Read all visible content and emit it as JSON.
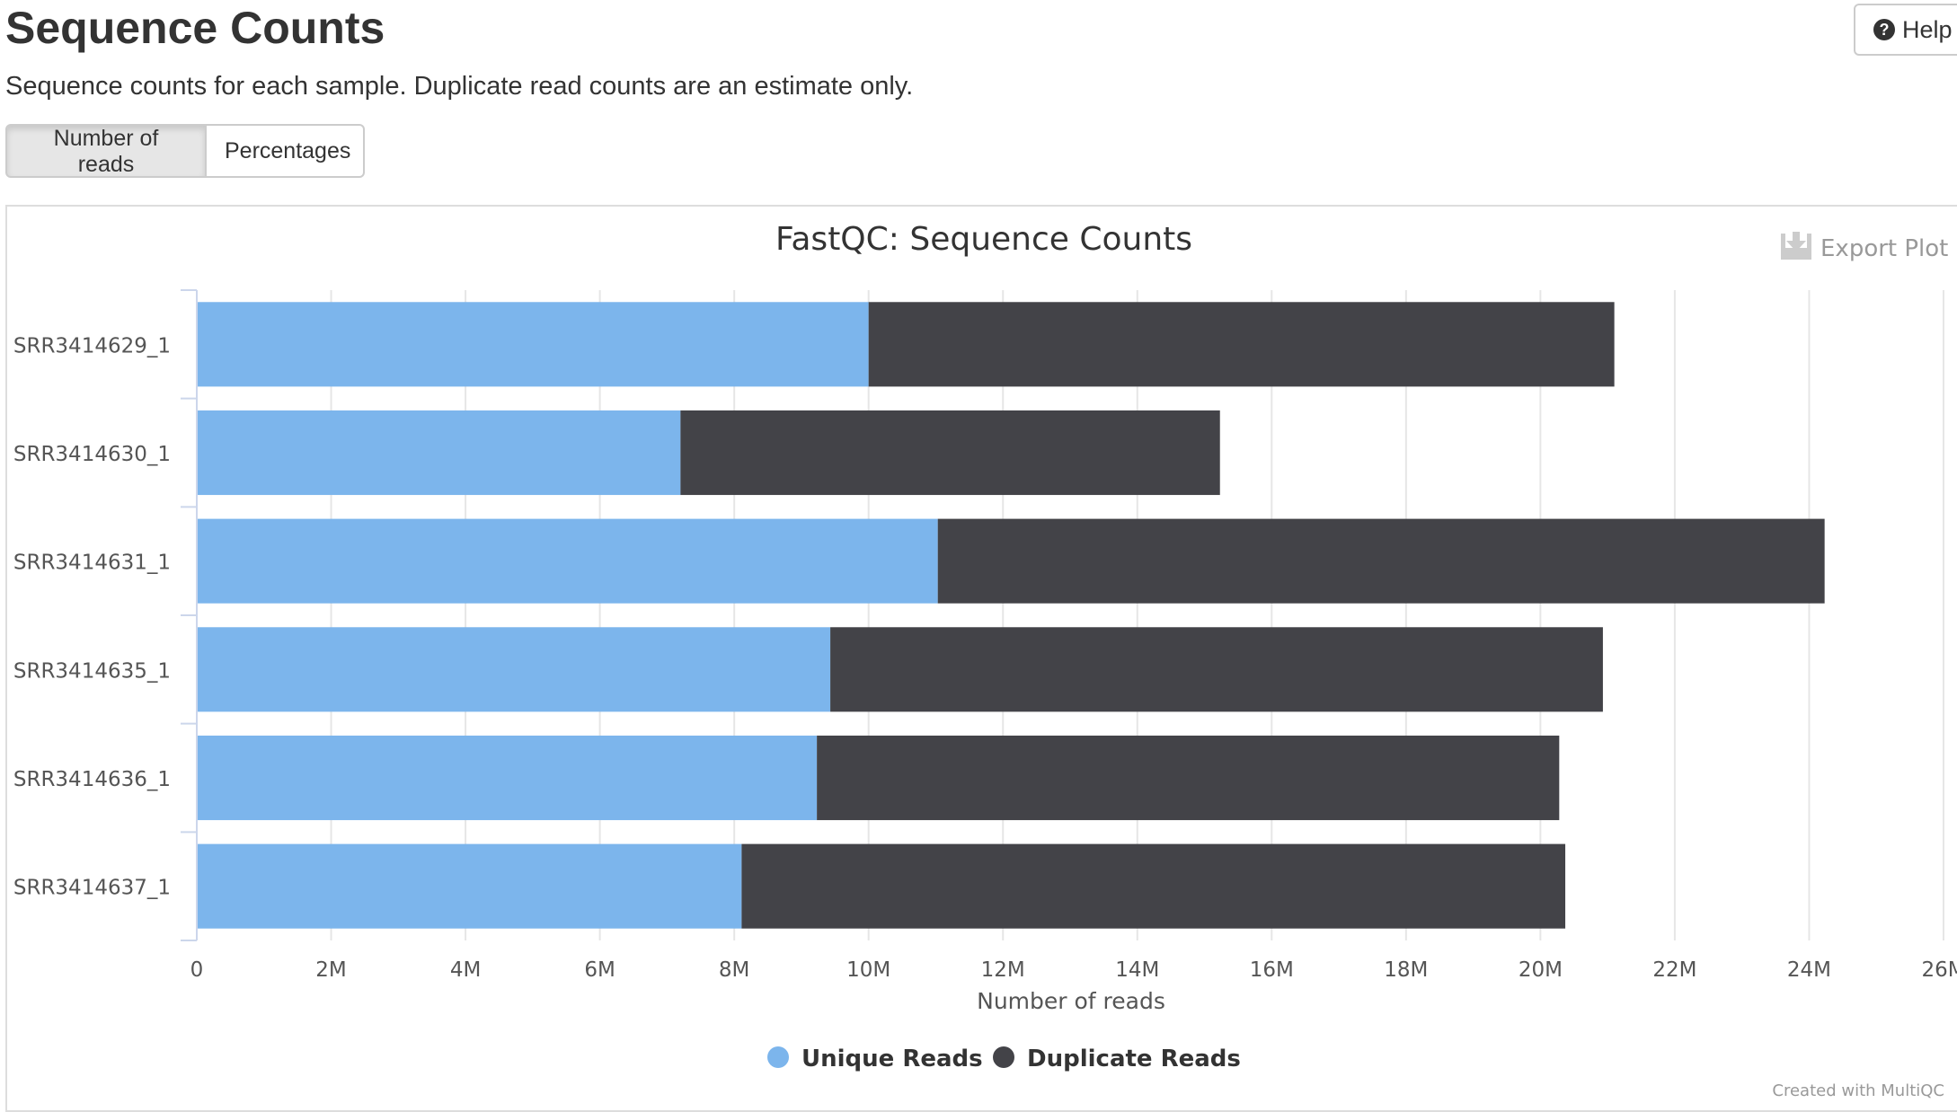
{
  "page": {
    "title": "Sequence Counts",
    "description": "Sequence counts for each sample. Duplicate read counts are an estimate only.",
    "help_label": "Help",
    "tabs": [
      {
        "label": "Number of reads",
        "active": true
      },
      {
        "label": "Percentages",
        "active": false
      }
    ],
    "export_label": "Export Plot",
    "credit": "Created with MultiQC"
  },
  "chart_data": {
    "type": "bar",
    "orientation": "horizontal",
    "stacked": true,
    "title": "FastQC: Sequence Counts",
    "xlabel": "Number of reads",
    "ylabel": "",
    "xlim": [
      0,
      26000000
    ],
    "x_ticks": [
      0,
      2000000,
      4000000,
      6000000,
      8000000,
      10000000,
      12000000,
      14000000,
      16000000,
      18000000,
      20000000,
      22000000,
      24000000,
      26000000
    ],
    "x_tick_labels": [
      "0",
      "2M",
      "4M",
      "6M",
      "8M",
      "10M",
      "12M",
      "14M",
      "16M",
      "18M",
      "20M",
      "22M",
      "24M",
      "26M"
    ],
    "categories": [
      "SRR3414629_1",
      "SRR3414630_1",
      "SRR3414631_1",
      "SRR3414635_1",
      "SRR3414636_1",
      "SRR3414637_1"
    ],
    "series": [
      {
        "name": "Unique Reads",
        "color": "#7cb5ec",
        "values": [
          10000000,
          7200000,
          11030000,
          9430000,
          9230000,
          8110000
        ]
      },
      {
        "name": "Duplicate Reads",
        "color": "#434348",
        "values": [
          11100000,
          8030000,
          13200000,
          11500000,
          11050000,
          12260000
        ]
      }
    ],
    "grid": true,
    "legend_position": "bottom-center"
  }
}
